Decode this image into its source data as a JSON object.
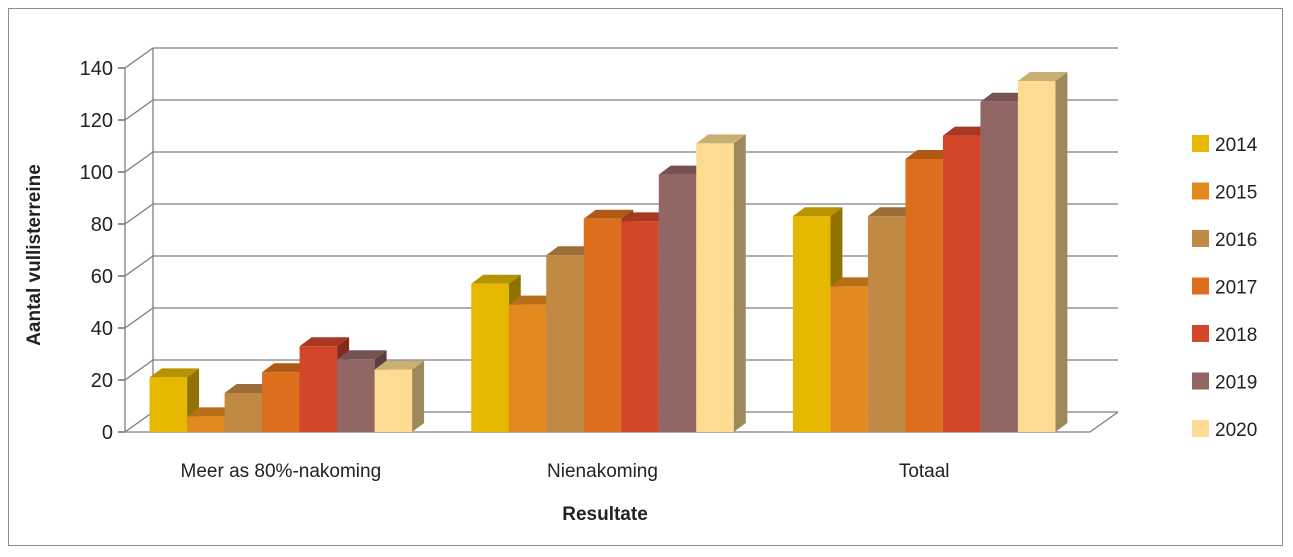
{
  "chart_data": {
    "type": "bar",
    "title": "",
    "xlabel": "Resultate",
    "ylabel": "Aantal vullisterreine",
    "categories": [
      "Meer as 80%-nakoming",
      "Nienakoming",
      "Totaal"
    ],
    "series": [
      {
        "name": "2014",
        "values": [
          21,
          57,
          83
        ]
      },
      {
        "name": "2015",
        "values": [
          6,
          49,
          56
        ]
      },
      {
        "name": "2016",
        "values": [
          15,
          68,
          83
        ]
      },
      {
        "name": "2017",
        "values": [
          23,
          82,
          105
        ]
      },
      {
        "name": "2018",
        "values": [
          33,
          81,
          114
        ]
      },
      {
        "name": "2019",
        "values": [
          28,
          99,
          127
        ]
      },
      {
        "name": "2020",
        "values": [
          24,
          111,
          135
        ]
      }
    ],
    "yticks": [
      "0",
      "20",
      "40",
      "60",
      "80",
      "100",
      "120",
      "140"
    ],
    "ylim": [
      0,
      140
    ],
    "grid": true,
    "legend": "right",
    "colors": [
      "#E6B800",
      "#E38A1E",
      "#C08A44",
      "#DC6E1C",
      "#D3462A",
      "#936666",
      "#FDDB92"
    ]
  }
}
